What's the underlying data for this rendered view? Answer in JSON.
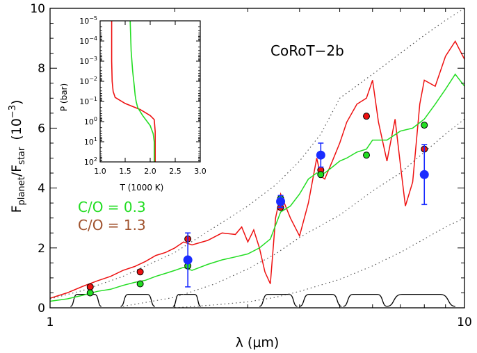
{
  "chart_data": [
    {
      "type": "line",
      "title": "",
      "annotation": "CoRoT−2b",
      "xlabel": "λ (μm)",
      "ylabel": "F_planet/F_star (10^-3)",
      "ylabel_parts": {
        "main": "F",
        "sub1": "planet",
        "slash": "/F",
        "sub2": "star",
        "unit": "(10",
        "exp": "−3",
        "close": ")"
      },
      "xscale": "log",
      "xlim": [
        1,
        10
      ],
      "ylim": [
        0,
        10
      ],
      "x_ticks": [
        {
          "value": 1,
          "label": "1"
        },
        {
          "value": 10,
          "label": "10"
        }
      ],
      "y_ticks": [
        {
          "value": 0,
          "label": "0"
        },
        {
          "value": 2,
          "label": "2"
        },
        {
          "value": 4,
          "label": "4"
        },
        {
          "value": 6,
          "label": "6"
        },
        {
          "value": 8,
          "label": "8"
        },
        {
          "value": 10,
          "label": "10"
        }
      ],
      "legend": [
        {
          "label": "C/O = 0.3",
          "color": "#22dd22"
        },
        {
          "label": "C/O = 1.3",
          "color": "#a0522d"
        }
      ],
      "colors": {
        "red_model": "#ee1111",
        "green_model": "#22dd22",
        "observed": "#1a2cff",
        "blackbody": "#555555",
        "filters": "#000000"
      },
      "series": [
        {
          "color": "#ee1111",
          "x": [
            1.0,
            1.1,
            1.2,
            1.3,
            1.4,
            1.5,
            1.6,
            1.7,
            1.8,
            1.9,
            2.0,
            2.1,
            2.2,
            2.4,
            2.6,
            2.8,
            2.9,
            3.0,
            3.1,
            3.2,
            3.3,
            3.4,
            3.5,
            3.6,
            3.8,
            4.0,
            4.2,
            4.4,
            4.5,
            4.6,
            4.8,
            5.0,
            5.2,
            5.5,
            5.8,
            6.0,
            6.2,
            6.5,
            6.8,
            7.0,
            7.2,
            7.5,
            7.8,
            8.0,
            8.5,
            9.0,
            9.5,
            10.0
          ],
          "y": [
            0.32,
            0.5,
            0.72,
            0.9,
            1.05,
            1.25,
            1.38,
            1.55,
            1.75,
            1.85,
            2.0,
            2.2,
            2.1,
            2.25,
            2.5,
            2.45,
            2.7,
            2.2,
            2.6,
            2.0,
            1.2,
            0.8,
            3.0,
            3.8,
            3.0,
            2.4,
            3.5,
            5.0,
            4.4,
            4.3,
            4.9,
            5.5,
            6.2,
            6.8,
            7.0,
            7.6,
            6.2,
            4.9,
            6.3,
            4.8,
            3.4,
            4.2,
            6.8,
            7.6,
            7.4,
            8.4,
            8.9,
            8.3
          ]
        },
        {
          "color": "#22dd22",
          "x": [
            1.0,
            1.1,
            1.2,
            1.3,
            1.4,
            1.5,
            1.6,
            1.7,
            1.8,
            1.9,
            2.0,
            2.1,
            2.2,
            2.4,
            2.6,
            2.8,
            3.0,
            3.2,
            3.4,
            3.6,
            3.8,
            4.0,
            4.2,
            4.4,
            4.6,
            4.8,
            5.0,
            5.2,
            5.5,
            5.8,
            6.0,
            6.5,
            7.0,
            7.5,
            8.0,
            8.5,
            9.0,
            9.5,
            10.0
          ],
          "y": [
            0.22,
            0.3,
            0.42,
            0.55,
            0.62,
            0.75,
            0.85,
            0.92,
            1.05,
            1.15,
            1.25,
            1.35,
            1.25,
            1.45,
            1.6,
            1.7,
            1.8,
            2.0,
            2.3,
            3.2,
            3.4,
            3.8,
            4.3,
            4.5,
            4.5,
            4.7,
            4.9,
            5.0,
            5.2,
            5.3,
            5.6,
            5.6,
            5.9,
            6.0,
            6.3,
            6.8,
            7.3,
            7.8,
            7.4
          ]
        },
        {
          "color": "#555555",
          "dash": true,
          "x": [
            1.0,
            1.2,
            1.5,
            2.0,
            2.5,
            3.0,
            3.5,
            4.0,
            4.5,
            5.0,
            6.0,
            7.0,
            8.0,
            9.0,
            10.0
          ],
          "y": [
            0.3,
            0.58,
            1.05,
            1.85,
            2.7,
            3.4,
            4.1,
            4.9,
            5.8,
            7.0,
            7.8,
            8.5,
            9.1,
            9.6,
            10.0
          ]
        },
        {
          "color": "#555555",
          "dash": true,
          "x": [
            1.5,
            2.0,
            2.5,
            3.0,
            3.5,
            4.0,
            5.0,
            6.0,
            7.0,
            8.0,
            9.0,
            10.0
          ],
          "y": [
            0.05,
            0.35,
            0.8,
            1.3,
            1.8,
            2.35,
            3.1,
            3.9,
            4.5,
            5.2,
            5.8,
            6.3
          ]
        },
        {
          "color": "#555555",
          "dash": true,
          "x": [
            2.0,
            2.5,
            3.0,
            3.5,
            4.0,
            5.0,
            6.0,
            7.0,
            8.0,
            9.0,
            10.0
          ],
          "y": [
            0.0,
            0.1,
            0.2,
            0.35,
            0.55,
            0.95,
            1.4,
            1.85,
            2.3,
            2.7,
            3.0
          ]
        }
      ],
      "points": [
        {
          "x": 1.25,
          "y": 0.7,
          "color": "#ee1111"
        },
        {
          "x": 1.25,
          "y": 0.5,
          "color": "#22dd22"
        },
        {
          "x": 1.65,
          "y": 1.2,
          "color": "#ee1111"
        },
        {
          "x": 1.65,
          "y": 0.8,
          "color": "#22dd22"
        },
        {
          "x": 2.15,
          "y": 2.3,
          "color": "#ee1111"
        },
        {
          "x": 2.15,
          "y": 1.4,
          "color": "#22dd22"
        },
        {
          "x": 3.6,
          "y": 3.65,
          "color": "#22dd22"
        },
        {
          "x": 3.6,
          "y": 3.35,
          "color": "#ee1111"
        },
        {
          "x": 4.5,
          "y": 4.6,
          "color": "#ee1111"
        },
        {
          "x": 4.5,
          "y": 4.45,
          "color": "#22dd22"
        },
        {
          "x": 5.8,
          "y": 6.4,
          "color": "#ee1111"
        },
        {
          "x": 5.8,
          "y": 5.1,
          "color": "#22dd22"
        },
        {
          "x": 8.0,
          "y": 6.1,
          "color": "#22dd22"
        },
        {
          "x": 8.0,
          "y": 5.3,
          "color": "#ee1111"
        }
      ],
      "observations": [
        {
          "x": 2.15,
          "y": 1.6,
          "err": 0.9
        },
        {
          "x": 3.6,
          "y": 3.55,
          "err": 0.2
        },
        {
          "x": 4.5,
          "y": 5.1,
          "err": 0.4
        },
        {
          "x": 8.0,
          "y": 4.45,
          "err": 1.0
        }
      ],
      "filters": [
        {
          "x0": 1.12,
          "x1": 1.33
        },
        {
          "x0": 1.48,
          "x1": 1.79
        },
        {
          "x0": 1.98,
          "x1": 2.31
        },
        {
          "x0": 3.2,
          "x1": 3.95
        },
        {
          "x0": 4.0,
          "x1": 5.05
        },
        {
          "x0": 5.1,
          "x1": 6.5
        },
        {
          "x0": 6.5,
          "x1": 9.5
        }
      ]
    },
    {
      "type": "line",
      "title": "",
      "xlabel": "T (1000 K)",
      "ylabel": "P (bar)",
      "xlim": [
        1.0,
        3.0
      ],
      "ylog_range": [
        -5,
        2
      ],
      "x_ticks": [
        {
          "value": 1.0,
          "label": "1.0"
        },
        {
          "value": 1.5,
          "label": "1.5"
        },
        {
          "value": 2.0,
          "label": "2.0"
        },
        {
          "value": 2.5,
          "label": "2.5"
        },
        {
          "value": 3.0,
          "label": "3.0"
        }
      ],
      "y_ticks": [
        {
          "exp": -5,
          "base": "10",
          "label": "−5"
        },
        {
          "exp": -4,
          "base": "10",
          "label": "−4"
        },
        {
          "exp": -3,
          "base": "10",
          "label": "−3"
        },
        {
          "exp": -2,
          "base": "10",
          "label": "−2"
        },
        {
          "exp": -1,
          "base": "10",
          "label": "−1"
        },
        {
          "exp": 0,
          "base": "10",
          "label": "0"
        },
        {
          "exp": 1,
          "base": "10",
          "label": "1"
        },
        {
          "exp": 2,
          "base": "10",
          "label": "2"
        }
      ],
      "series": [
        {
          "color": "#ee1111",
          "T": [
            1.23,
            1.23,
            1.24,
            1.26,
            1.3,
            1.5,
            1.8,
            2.0,
            2.08,
            2.1,
            2.1
          ],
          "logP": [
            -5,
            -3.0,
            -2.0,
            -1.5,
            -1.2,
            -0.9,
            -0.6,
            -0.3,
            -0.1,
            0.5,
            2
          ]
        },
        {
          "color": "#22dd22",
          "T": [
            1.6,
            1.62,
            1.65,
            1.68,
            1.7,
            1.72,
            1.75,
            1.85,
            2.0,
            2.06,
            2.08,
            2.08
          ],
          "logP": [
            -5,
            -3.5,
            -2.5,
            -1.8,
            -1.3,
            -1.0,
            -0.7,
            -0.3,
            0.2,
            0.6,
            1.0,
            2
          ]
        }
      ]
    }
  ]
}
